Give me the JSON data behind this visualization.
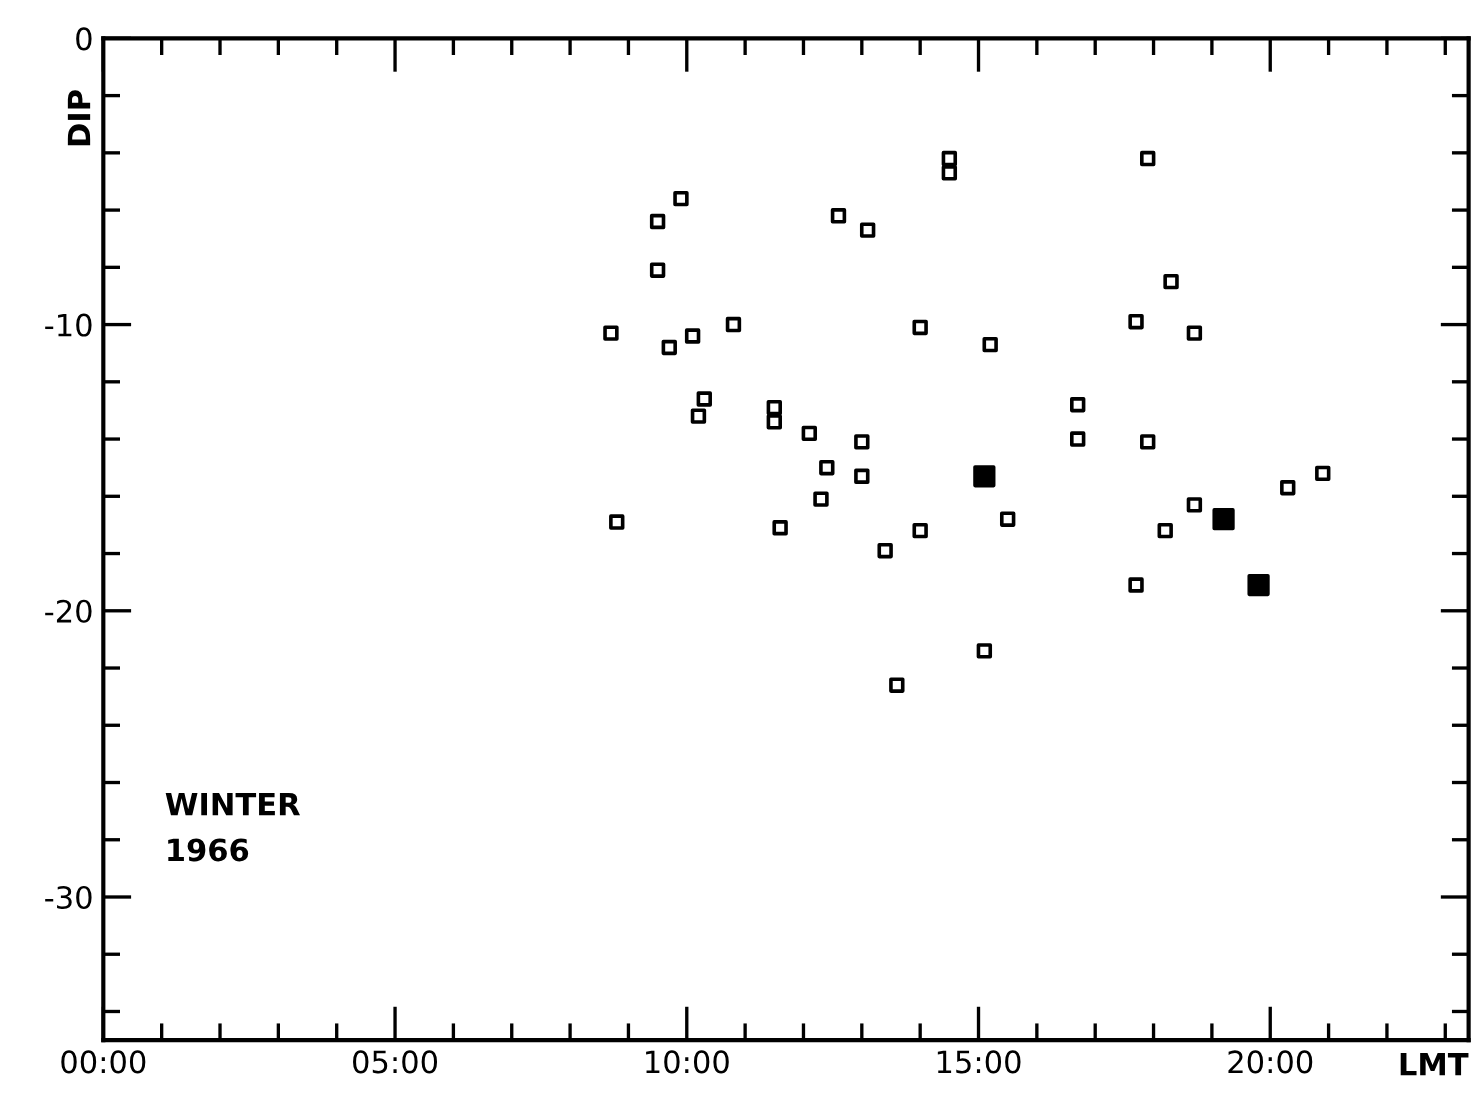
{
  "chart_data": {
    "type": "scatter",
    "xlabel": "LMT",
    "ylabel": "DIP",
    "annotations": [
      "WINTER\n1966"
    ],
    "xlim": [
      0,
      23.4
    ],
    "ylim": [
      -35,
      0
    ],
    "xticks": [
      {
        "value": 0,
        "label": "00:00"
      },
      {
        "value": 1,
        "label": null
      },
      {
        "value": 2,
        "label": null
      },
      {
        "value": 3,
        "label": null
      },
      {
        "value": 4,
        "label": null
      },
      {
        "value": 5,
        "label": "05:00"
      },
      {
        "value": 6,
        "label": null
      },
      {
        "value": 7,
        "label": null
      },
      {
        "value": 8,
        "label": null
      },
      {
        "value": 9,
        "label": null
      },
      {
        "value": 10,
        "label": "10:00"
      },
      {
        "value": 11,
        "label": null
      },
      {
        "value": 12,
        "label": null
      },
      {
        "value": 13,
        "label": null
      },
      {
        "value": 14,
        "label": null
      },
      {
        "value": 15,
        "label": "15:00"
      },
      {
        "value": 16,
        "label": null
      },
      {
        "value": 17,
        "label": null
      },
      {
        "value": 18,
        "label": null
      },
      {
        "value": 19,
        "label": null
      },
      {
        "value": 20,
        "label": "20:00"
      },
      {
        "value": 21,
        "label": null
      },
      {
        "value": 22,
        "label": null
      },
      {
        "value": 23,
        "label": null
      }
    ],
    "yticks": [
      0,
      {
        "value": -2,
        "label": null
      },
      {
        "value": -4,
        "label": null
      },
      {
        "value": -6,
        "label": null
      },
      {
        "value": -8,
        "label": null
      },
      -10,
      {
        "value": -12,
        "label": null
      },
      {
        "value": -14,
        "label": null
      },
      {
        "value": -16,
        "label": null
      },
      {
        "value": -18,
        "label": null
      },
      -20,
      {
        "value": -22,
        "label": null
      },
      {
        "value": -24,
        "label": null
      },
      {
        "value": -26,
        "label": null
      },
      {
        "value": -28,
        "label": null
      },
      -30,
      {
        "value": -32,
        "label": null
      },
      {
        "value": -34,
        "label": null
      }
    ],
    "marker": "square",
    "grid": false,
    "series": [
      {
        "color": "#000000",
        "x": [
          14.5,
          14.5,
          9.9,
          9.5,
          12.6,
          13.1,
          9.5,
          10.8,
          8.7,
          10.1,
          9.7,
          14.0,
          15.2,
          10.3,
          10.2,
          11.5,
          11.5,
          12.1,
          13.0,
          12.4,
          13.0,
          12.3,
          8.8,
          11.6,
          14.0,
          13.4,
          15.1,
          13.6,
          17.9,
          18.3,
          17.7,
          18.7,
          16.7,
          16.7,
          17.9,
          20.9,
          20.3,
          18.7,
          15.5,
          18.2,
          17.7
        ],
        "values": [
          -4.2,
          -4.7,
          -5.6,
          -6.4,
          -6.2,
          -6.7,
          -8.1,
          -10.0,
          -10.3,
          -10.4,
          -10.8,
          -10.1,
          -10.7,
          -12.6,
          -13.2,
          -12.9,
          -13.4,
          -13.8,
          -14.1,
          -15.0,
          -15.3,
          -16.1,
          -16.9,
          -17.1,
          -17.2,
          -17.9,
          -21.4,
          -22.6,
          -4.2,
          -8.5,
          -9.9,
          -10.3,
          -12.8,
          -14.0,
          -14.1,
          -15.2,
          -15.7,
          -16.3,
          -16.8,
          -17.2,
          -19.1
        ]
      },
      {
        "color": "#000000",
        "colors": [
          "#000000",
          "#000000",
          "#000000"
        ],
        "x": [
          15.1,
          19.2,
          19.8
        ],
        "values": [
          -15.3,
          -16.8,
          -19.1
        ]
      }
    ]
  }
}
